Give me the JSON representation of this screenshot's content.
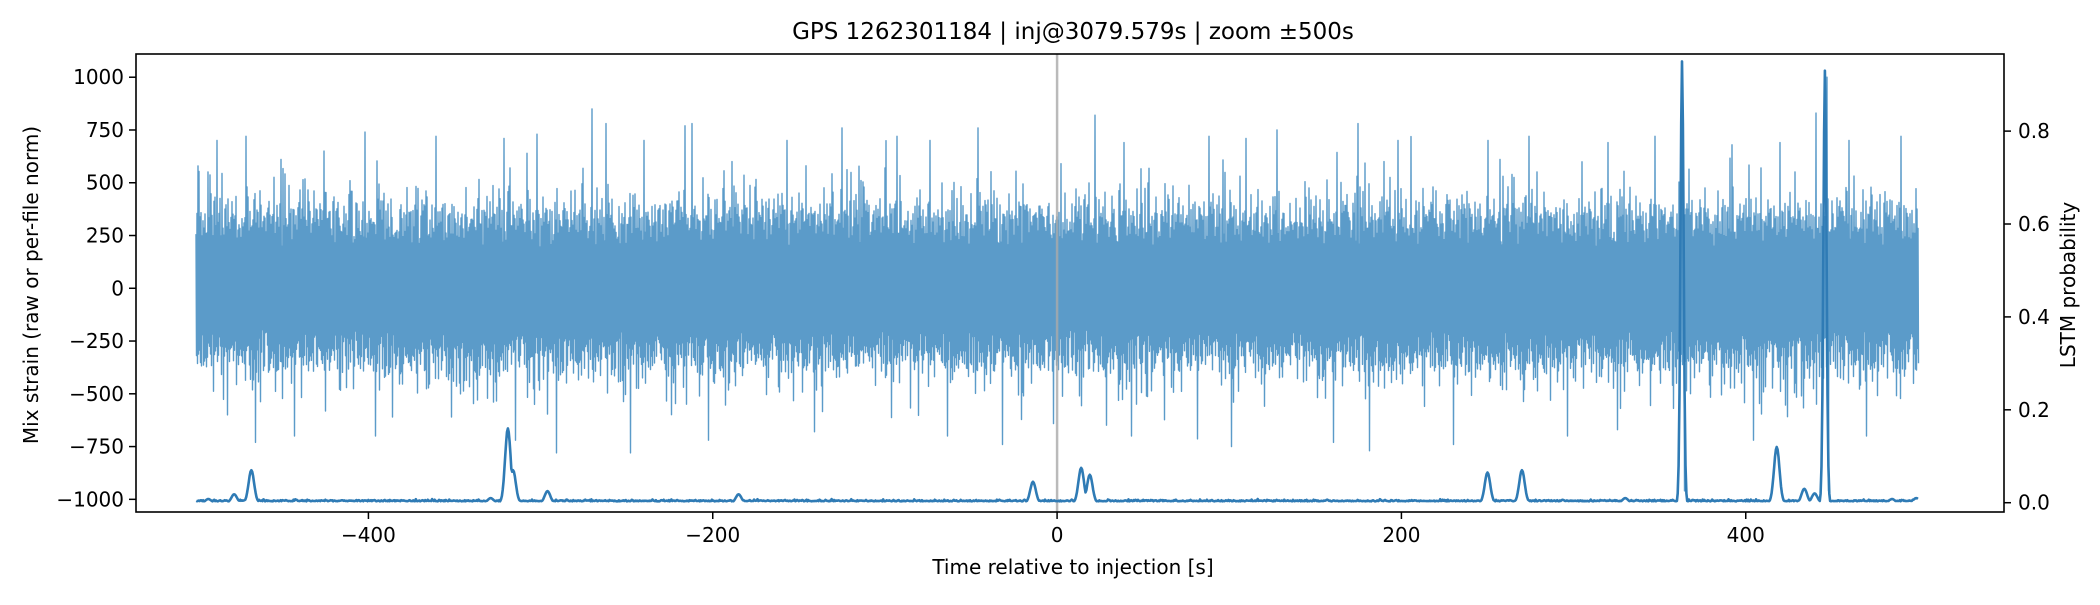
{
  "chart_data": {
    "type": "line",
    "title": "GPS 1262301184 | inj@3079.579s | zoom ±500s",
    "xlabel": "Time relative to injection [s]",
    "ylabel_left": "Mix strain (raw or per-file norm)",
    "ylabel_right": "LSTM probability",
    "xlim": [
      -535,
      550
    ],
    "ylim_left": [
      -1060,
      1110
    ],
    "ylim_right": [
      -0.02,
      0.966
    ],
    "x_ticks": [
      -400,
      -200,
      0,
      200,
      400
    ],
    "x_tick_labels": [
      "−400",
      "−200",
      "0",
      "200",
      "400"
    ],
    "y_left_ticks": [
      1000,
      750,
      500,
      250,
      0,
      -250,
      -500,
      -750,
      -1000
    ],
    "y_left_tick_labels": [
      "1000",
      "750",
      "500",
      "250",
      "0",
      "−250",
      "−500",
      "−750",
      "−1000"
    ],
    "y_right_ticks": [
      0.8,
      0.6,
      0.4,
      0.2,
      0.0
    ],
    "y_right_tick_labels": [
      "0.8",
      "0.6",
      "0.4",
      "0.2",
      "0.0"
    ],
    "injection_marker_x": 0,
    "grid": false,
    "colors": {
      "strain": "#5b9bc9",
      "probability": "#2f7bb5",
      "marker": "#aaaaaa"
    },
    "series": [
      {
        "axis": "left",
        "kind": "strain-noise",
        "x_range": [
          -500,
          500
        ],
        "core_amplitude": 350,
        "approx_spikes": [
          {
            "x": -499,
            "y": 580
          },
          {
            "x": -488,
            "y": 700
          },
          {
            "x": -482,
            "y": -600
          },
          {
            "x": -471,
            "y": 720
          },
          {
            "x": -466,
            "y": -730
          },
          {
            "x": -451,
            "y": 610
          },
          {
            "x": -443,
            "y": -700
          },
          {
            "x": -426,
            "y": 650
          },
          {
            "x": -402,
            "y": 740
          },
          {
            "x": -396,
            "y": -700
          },
          {
            "x": -361,
            "y": 720
          },
          {
            "x": -352,
            "y": -610
          },
          {
            "x": -321,
            "y": 710
          },
          {
            "x": -315,
            "y": -720
          },
          {
            "x": -302,
            "y": 730
          },
          {
            "x": -291,
            "y": -780
          },
          {
            "x": -270,
            "y": 850
          },
          {
            "x": -262,
            "y": 780
          },
          {
            "x": -248,
            "y": -780
          },
          {
            "x": -240,
            "y": 700
          },
          {
            "x": -216,
            "y": 770
          },
          {
            "x": -212,
            "y": 780
          },
          {
            "x": -203,
            "y": -720
          },
          {
            "x": -189,
            "y": 600
          },
          {
            "x": -157,
            "y": 700
          },
          {
            "x": -141,
            "y": -680
          },
          {
            "x": -125,
            "y": 760
          },
          {
            "x": -93,
            "y": 720
          },
          {
            "x": -74,
            "y": 700
          },
          {
            "x": -64,
            "y": -700
          },
          {
            "x": -46,
            "y": 760
          },
          {
            "x": -32,
            "y": -740
          },
          {
            "x": 22,
            "y": 820
          },
          {
            "x": 39,
            "y": 690
          },
          {
            "x": 43,
            "y": -700
          },
          {
            "x": 88,
            "y": 720
          },
          {
            "x": 101,
            "y": -750
          },
          {
            "x": 110,
            "y": 710
          },
          {
            "x": 128,
            "y": 750
          },
          {
            "x": 160,
            "y": -730
          },
          {
            "x": 175,
            "y": 780
          },
          {
            "x": 181,
            "y": -770
          },
          {
            "x": 198,
            "y": 700
          },
          {
            "x": 230,
            "y": -740
          },
          {
            "x": 250,
            "y": 700
          },
          {
            "x": 274,
            "y": 720
          },
          {
            "x": 296,
            "y": -700
          },
          {
            "x": 320,
            "y": 690
          },
          {
            "x": 325,
            "y": -670
          },
          {
            "x": 347,
            "y": 720
          },
          {
            "x": 363,
            "y": 1000
          },
          {
            "x": 364,
            "y": -960
          },
          {
            "x": 392,
            "y": 680
          },
          {
            "x": 404,
            "y": -720
          },
          {
            "x": 420,
            "y": 690
          },
          {
            "x": 441,
            "y": 830
          },
          {
            "x": 447,
            "y": 1000
          },
          {
            "x": 448,
            "y": -960
          },
          {
            "x": 460,
            "y": 700
          },
          {
            "x": 470,
            "y": -700
          },
          {
            "x": 490,
            "y": 720
          }
        ]
      },
      {
        "axis": "right",
        "kind": "probability",
        "baseline": 0.003,
        "approx_peaks": [
          {
            "x": -493,
            "y": 0.008
          },
          {
            "x": -478,
            "y": 0.018
          },
          {
            "x": -468,
            "y": 0.07
          },
          {
            "x": -329,
            "y": 0.01
          },
          {
            "x": -319,
            "y": 0.16
          },
          {
            "x": -316,
            "y": 0.07
          },
          {
            "x": -296,
            "y": 0.025
          },
          {
            "x": -185,
            "y": 0.018
          },
          {
            "x": -14,
            "y": 0.045
          },
          {
            "x": 14,
            "y": 0.075
          },
          {
            "x": 19,
            "y": 0.06
          },
          {
            "x": 250,
            "y": 0.065
          },
          {
            "x": 270,
            "y": 0.07
          },
          {
            "x": 330,
            "y": 0.01
          },
          {
            "x": 363,
            "y": 0.95
          },
          {
            "x": 418,
            "y": 0.12
          },
          {
            "x": 434,
            "y": 0.03
          },
          {
            "x": 440,
            "y": 0.02
          },
          {
            "x": 446,
            "y": 0.93
          },
          {
            "x": 485,
            "y": 0.008
          },
          {
            "x": 499,
            "y": 0.01
          }
        ]
      }
    ]
  }
}
